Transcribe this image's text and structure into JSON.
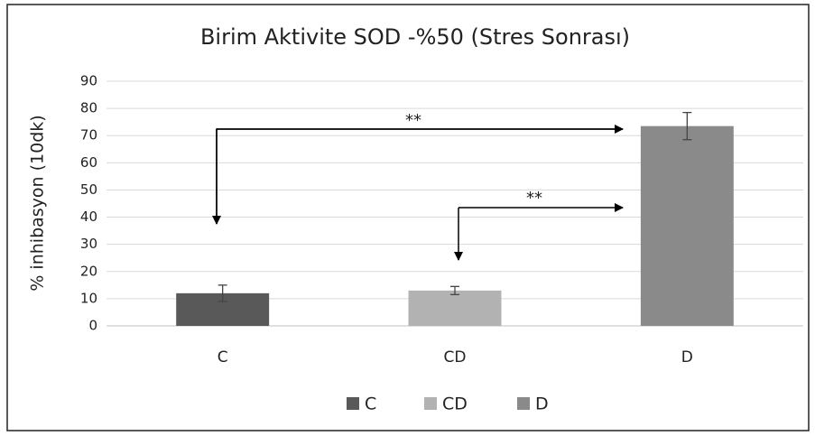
{
  "chart_data": {
    "type": "bar",
    "title": "Birim Aktivite SOD -%50 (Stres Sonrası)",
    "y_label": "% inhibasyon (10dk)",
    "categories": [
      "C",
      "CD",
      "D"
    ],
    "values": [
      12,
      13,
      73.5
    ],
    "errors": [
      3,
      1.5,
      5
    ],
    "colors": [
      "#595959",
      "#b2b2b2",
      "#8a8a8a"
    ],
    "ylim": [
      0,
      90
    ],
    "yticks": [
      0,
      10,
      20,
      30,
      40,
      50,
      60,
      70,
      80,
      90
    ],
    "grid": true,
    "legend": "bottom",
    "annotations": [
      "**",
      "**"
    ]
  }
}
